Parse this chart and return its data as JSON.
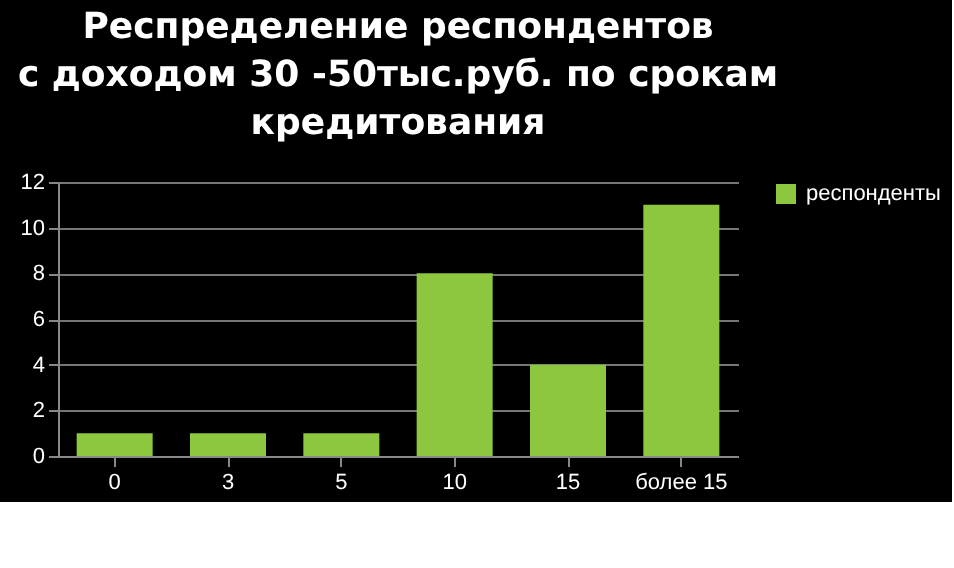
{
  "chart_data": {
    "type": "bar",
    "title": "Респределение респондентов\nс доходом  30 -50тыс.руб. по срокам\nкредитования",
    "categories": [
      "0",
      "3",
      "5",
      "10",
      "15",
      "более 15"
    ],
    "series": [
      {
        "name": "респонденты",
        "color": "#8dc63f",
        "values": [
          1,
          1,
          1,
          8,
          4,
          11
        ]
      }
    ],
    "ylim": [
      0,
      12
    ],
    "yticks": [
      0,
      2,
      4,
      6,
      8,
      10,
      12
    ],
    "grid": "y",
    "legend": "right"
  }
}
